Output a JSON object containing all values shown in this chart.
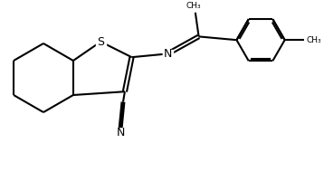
{
  "background_color": "#ffffff",
  "line_color": "#000000",
  "line_width": 1.5,
  "fig_width": 3.58,
  "fig_height": 1.9,
  "dpi": 100,
  "xlim": [
    0,
    3.58
  ],
  "ylim": [
    0,
    1.9
  ]
}
